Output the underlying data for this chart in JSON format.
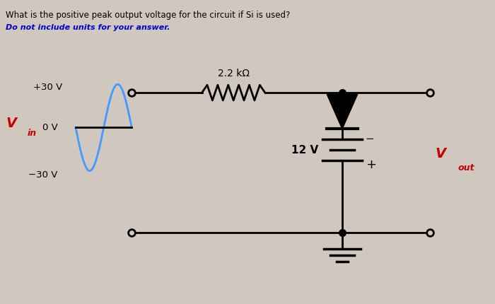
{
  "title_text": "What is the positive peak output voltage for the circuit if Si is used?",
  "subtitle_text": "Do not include units for your answer.",
  "bg_color": "#d0c8be",
  "question_color": "#000000",
  "subtitle_color": "#0000cc",
  "vin_color": "#cc0000",
  "vout_color": "#cc0000",
  "sine_color": "#4499ff",
  "wire_color": "#000000",
  "resistor_label": "2.2 kΩ",
  "voltage_label": "12 V",
  "vin_label": "V",
  "vin_sub": "in",
  "vout_label": "V",
  "vout_sub": "out",
  "plus30": "+30 V",
  "zero": "0 V",
  "minus30": "−30 V"
}
